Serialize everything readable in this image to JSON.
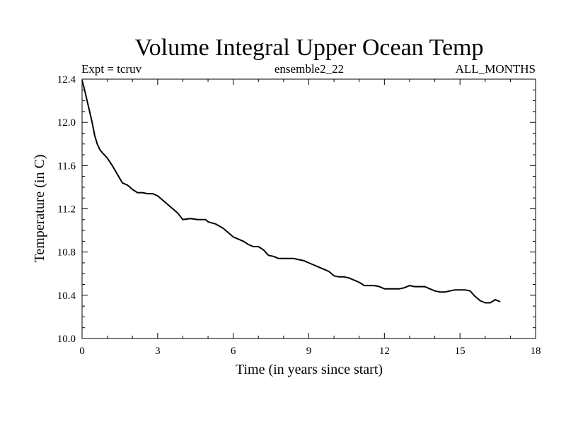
{
  "chart_data": {
    "type": "line",
    "title": "Volume Integral Upper Ocean Temp",
    "subtitle_left": "Expt = tcruv",
    "subtitle_center": "ensemble2_22",
    "subtitle_right": "ALL_MONTHS",
    "xlabel": "Time (in years since start)",
    "ylabel": "Temperature (in C)",
    "xlim": [
      0,
      18
    ],
    "ylim": [
      10.0,
      12.4
    ],
    "x_ticks": [
      0,
      3,
      6,
      9,
      12,
      15,
      18
    ],
    "x_tick_labels": [
      "0",
      "3",
      "6",
      "9",
      "12",
      "15",
      "18"
    ],
    "y_ticks": [
      10.0,
      10.4,
      10.8,
      11.2,
      11.6,
      12.0,
      12.4
    ],
    "y_tick_labels": [
      "10.0",
      "10.4",
      "10.8",
      "11.2",
      "11.6",
      "12.0",
      "12.4"
    ],
    "grid": false,
    "line_color": "#000000",
    "series": [
      {
        "x": [
          0.0,
          0.1,
          0.2,
          0.3,
          0.4,
          0.5,
          0.6,
          0.7,
          0.8,
          1.0,
          1.2,
          1.4,
          1.5,
          1.6,
          1.8,
          2.0,
          2.2,
          2.4,
          2.6,
          2.8,
          3.0,
          3.2,
          3.4,
          3.6,
          3.8,
          4.0,
          4.3,
          4.6,
          4.9,
          5.0,
          5.3,
          5.6,
          5.8,
          6.0,
          6.2,
          6.4,
          6.6,
          6.8,
          7.0,
          7.2,
          7.4,
          7.6,
          7.8,
          8.0,
          8.2,
          8.4,
          8.6,
          8.8,
          9.0,
          9.2,
          9.4,
          9.6,
          9.8,
          10.0,
          10.2,
          10.4,
          10.6,
          10.8,
          11.0,
          11.2,
          11.4,
          11.6,
          11.8,
          12.0,
          12.2,
          12.4,
          12.6,
          12.8,
          13.0,
          13.2,
          13.4,
          13.6,
          13.8,
          14.0,
          14.2,
          14.4,
          14.6,
          14.8,
          15.0,
          15.2,
          15.4,
          15.6,
          15.8,
          16.0,
          16.2,
          16.4,
          16.6
        ],
        "y": [
          12.39,
          12.3,
          12.2,
          12.1,
          12.0,
          11.88,
          11.8,
          11.75,
          11.72,
          11.67,
          11.6,
          11.52,
          11.48,
          11.44,
          11.42,
          11.38,
          11.35,
          11.35,
          11.34,
          11.34,
          11.32,
          11.28,
          11.24,
          11.2,
          11.16,
          11.1,
          11.11,
          11.1,
          11.1,
          11.08,
          11.06,
          11.02,
          10.98,
          10.94,
          10.92,
          10.9,
          10.87,
          10.85,
          10.85,
          10.82,
          10.77,
          10.76,
          10.74,
          10.74,
          10.74,
          10.74,
          10.73,
          10.72,
          10.7,
          10.68,
          10.66,
          10.64,
          10.62,
          10.58,
          10.57,
          10.57,
          10.56,
          10.54,
          10.52,
          10.49,
          10.49,
          10.49,
          10.48,
          10.46,
          10.46,
          10.46,
          10.46,
          10.47,
          10.49,
          10.48,
          10.48,
          10.48,
          10.46,
          10.44,
          10.43,
          10.43,
          10.44,
          10.45,
          10.45,
          10.45,
          10.44,
          10.39,
          10.35,
          10.33,
          10.33,
          10.36,
          10.34
        ]
      }
    ]
  }
}
